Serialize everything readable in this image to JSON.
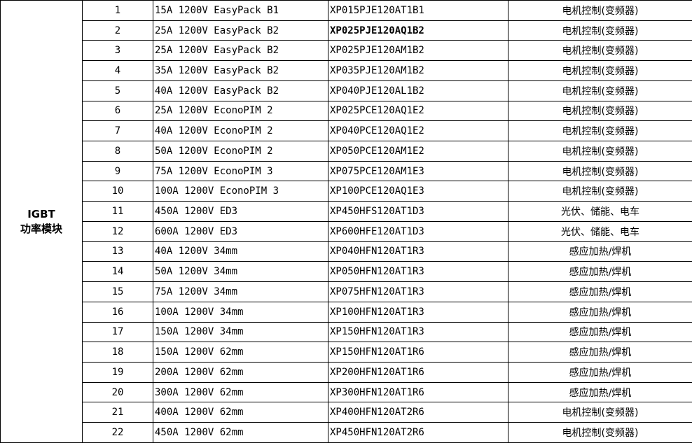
{
  "category": {
    "line1": "IGBT",
    "line2": "功率模块"
  },
  "table": {
    "columns": [
      "category",
      "number",
      "description",
      "part_number",
      "application"
    ],
    "rows": [
      {
        "no": "1",
        "desc": "15A 1200V EasyPack B1",
        "part": "XP015PJE120AT1B1",
        "part_bold": false,
        "app": "电机控制(变频器)"
      },
      {
        "no": "2",
        "desc": "25A 1200V EasyPack B2",
        "part": "XP025PJE120AQ1B2",
        "part_bold": true,
        "app": "电机控制(变频器)"
      },
      {
        "no": "3",
        "desc": "25A 1200V EasyPack B2",
        "part": "XP025PJE120AM1B2",
        "part_bold": false,
        "app": "电机控制(变频器)"
      },
      {
        "no": "4",
        "desc": "35A 1200V EasyPack B2",
        "part": "XP035PJE120AM1B2",
        "part_bold": false,
        "app": "电机控制(变频器)"
      },
      {
        "no": "5",
        "desc": "40A 1200V EasyPack B2",
        "part": "XP040PJE120AL1B2",
        "part_bold": false,
        "app": "电机控制(变频器)"
      },
      {
        "no": "6",
        "desc": "25A 1200V EconoPIM 2",
        "part": "XP025PCE120AQ1E2",
        "part_bold": false,
        "app": "电机控制(变频器)"
      },
      {
        "no": "7",
        "desc": "40A 1200V EconoPIM 2",
        "part": "XP040PCE120AQ1E2",
        "part_bold": false,
        "app": "电机控制(变频器)"
      },
      {
        "no": "8",
        "desc": "50A 1200V EconoPIM 2",
        "part": "XP050PCE120AM1E2",
        "part_bold": false,
        "app": "电机控制(变频器)"
      },
      {
        "no": "9",
        "desc": "75A 1200V EconoPIM 3",
        "part": "XP075PCE120AM1E3",
        "part_bold": false,
        "app": "电机控制(变频器)"
      },
      {
        "no": "10",
        "desc": "100A 1200V EconoPIM 3",
        "part": "XP100PCE120AQ1E3",
        "part_bold": false,
        "app": "电机控制(变频器)"
      },
      {
        "no": "11",
        "desc": "450A 1200V ED3",
        "part": "XP450HFS120AT1D3",
        "part_bold": false,
        "app": "光伏、储能、电车"
      },
      {
        "no": "12",
        "desc": "600A 1200V ED3",
        "part": "XP600HFE120AT1D3",
        "part_bold": false,
        "app": "光伏、储能、电车"
      },
      {
        "no": "13",
        "desc": "40A 1200V 34mm",
        "part": "XP040HFN120AT1R3",
        "part_bold": false,
        "app": "感应加热/焊机"
      },
      {
        "no": "14",
        "desc": "50A 1200V 34mm",
        "part": "XP050HFN120AT1R3",
        "part_bold": false,
        "app": "感应加热/焊机"
      },
      {
        "no": "15",
        "desc": "75A 1200V 34mm",
        "part": "XP075HFN120AT1R3",
        "part_bold": false,
        "app": "感应加热/焊机"
      },
      {
        "no": "16",
        "desc": "100A 1200V 34mm",
        "part": "XP100HFN120AT1R3",
        "part_bold": false,
        "app": "感应加热/焊机"
      },
      {
        "no": "17",
        "desc": "150A 1200V 34mm",
        "part": "XP150HFN120AT1R3",
        "part_bold": false,
        "app": "感应加热/焊机"
      },
      {
        "no": "18",
        "desc": "150A 1200V 62mm",
        "part": "XP150HFN120AT1R6",
        "part_bold": false,
        "app": "感应加热/焊机"
      },
      {
        "no": "19",
        "desc": "200A 1200V 62mm",
        "part": "XP200HFN120AT1R6",
        "part_bold": false,
        "app": "感应加热/焊机"
      },
      {
        "no": "20",
        "desc": "300A 1200V 62mm",
        "part": "XP300HFN120AT1R6",
        "part_bold": false,
        "app": "感应加热/焊机"
      },
      {
        "no": "21",
        "desc": "400A 1200V 62mm",
        "part": "XP400HFN120AT2R6",
        "part_bold": false,
        "app": "电机控制(变频器)"
      },
      {
        "no": "22",
        "desc": "450A 1200V 62mm",
        "part": "XP450HFN120AT2R6",
        "part_bold": false,
        "app": "电机控制(变频器)"
      }
    ]
  },
  "colors": {
    "border": "#000000",
    "text": "#000000",
    "background": "#ffffff"
  }
}
